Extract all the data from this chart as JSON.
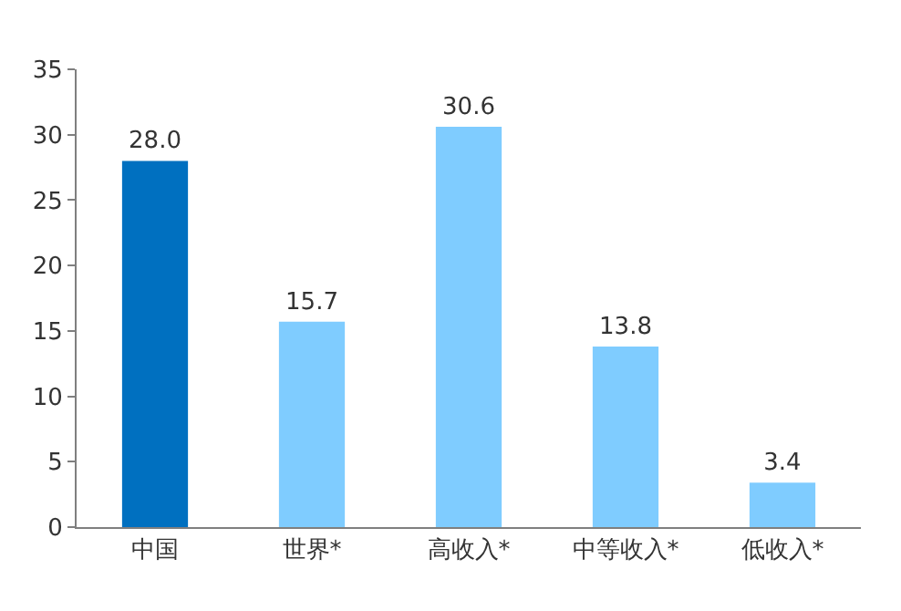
{
  "chart_data": {
    "type": "bar",
    "categories": [
      "中国",
      "世界*",
      "高收入*",
      "中等收入*",
      "低收入*"
    ],
    "values": [
      28.0,
      15.7,
      30.6,
      13.8,
      3.4
    ],
    "value_labels": [
      "28.0",
      "15.7",
      "30.6",
      "13.8",
      "3.4"
    ],
    "colors": [
      "#0070c0",
      "#7fccff",
      "#7fccff",
      "#7fccff",
      "#7fccff"
    ],
    "ylim": [
      0,
      35
    ],
    "yticks": [
      0,
      5,
      10,
      15,
      20,
      25,
      30,
      35
    ]
  }
}
